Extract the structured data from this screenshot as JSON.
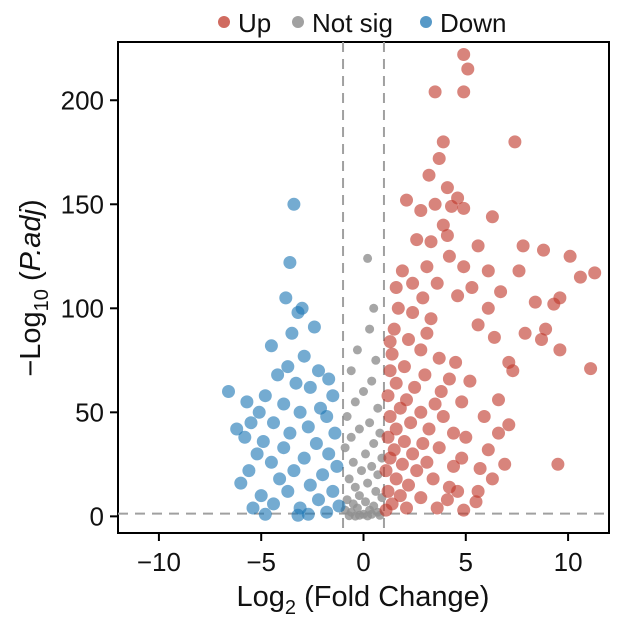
{
  "chart_data": {
    "type": "scatter",
    "title": "",
    "xlabel_main": "Log",
    "xlabel_sub": "2",
    "xlabel_rest": " (Fold Change)",
    "ylabel_main": "−Log",
    "ylabel_sub": "10",
    "ylabel_rest_a": " (",
    "ylabel_italic": "P.adj",
    "ylabel_rest_b": ")",
    "xlim": [
      -12,
      12
    ],
    "ylim": [
      -8,
      228
    ],
    "xticks": [
      -10,
      -5,
      0,
      5,
      10
    ],
    "xtick_labels": [
      "−10",
      "−5",
      "0",
      "5",
      "10"
    ],
    "yticks": [
      0,
      50,
      100,
      150,
      200
    ],
    "ytick_labels": [
      "0",
      "50",
      "100",
      "150",
      "200"
    ],
    "thresholds": {
      "log2fc": [
        -1,
        1
      ],
      "neg_log10_padj": 1.3
    },
    "legend_position": "top",
    "series": [
      {
        "name": "Up",
        "color": "#c0392b",
        "points": [
          [
            4.9,
            222
          ],
          [
            5.1,
            215
          ],
          [
            3.5,
            204
          ],
          [
            4.9,
            204
          ],
          [
            3.9,
            180
          ],
          [
            3.7,
            172
          ],
          [
            7.4,
            180
          ],
          [
            3.2,
            164
          ],
          [
            4.1,
            158
          ],
          [
            4.6,
            153
          ],
          [
            2.1,
            152
          ],
          [
            3.5,
            150
          ],
          [
            4.3,
            149
          ],
          [
            4.9,
            148
          ],
          [
            2.8,
            147
          ],
          [
            3.9,
            140
          ],
          [
            6.3,
            144
          ],
          [
            2.6,
            133
          ],
          [
            3.3,
            132
          ],
          [
            4.1,
            135
          ],
          [
            5.6,
            130
          ],
          [
            4.2,
            125
          ],
          [
            7.8,
            130
          ],
          [
            10.1,
            125
          ],
          [
            11.3,
            117
          ],
          [
            10.6,
            115
          ],
          [
            8.8,
            128
          ],
          [
            3.1,
            120
          ],
          [
            3.6,
            112
          ],
          [
            4.9,
            120
          ],
          [
            6.1,
            118
          ],
          [
            7.6,
            118
          ],
          [
            6.7,
            108
          ],
          [
            9.6,
            105
          ],
          [
            8.4,
            103
          ],
          [
            9.3,
            102
          ],
          [
            4.6,
            106
          ],
          [
            5.3,
            110
          ],
          [
            6.1,
            100
          ],
          [
            8.9,
            90
          ],
          [
            7.9,
            88
          ],
          [
            8.7,
            85
          ],
          [
            9.6,
            80
          ],
          [
            11.1,
            71
          ],
          [
            5.6,
            92
          ],
          [
            6.4,
            86
          ],
          [
            7.1,
            74
          ],
          [
            7.3,
            70
          ],
          [
            6.6,
            56
          ],
          [
            5.9,
            48
          ],
          [
            7.1,
            44
          ],
          [
            6.6,
            40
          ],
          [
            6.1,
            32
          ],
          [
            6.9,
            25
          ],
          [
            5.7,
            23
          ],
          [
            9.5,
            25
          ],
          [
            6.3,
            18
          ],
          [
            4.6,
            12
          ],
          [
            4.1,
            8
          ],
          [
            5.5,
            7
          ],
          [
            3.3,
            95
          ],
          [
            2.4,
            98
          ],
          [
            1.7,
            100
          ],
          [
            1.5,
            90
          ],
          [
            3.1,
            88
          ],
          [
            2.2,
            85
          ],
          [
            2.8,
            80
          ],
          [
            1.4,
            78
          ],
          [
            3.7,
            76
          ],
          [
            4.5,
            74
          ],
          [
            2.0,
            72
          ],
          [
            1.3,
            70
          ],
          [
            3.0,
            68
          ],
          [
            4.2,
            66
          ],
          [
            1.6,
            64
          ],
          [
            2.5,
            62
          ],
          [
            3.8,
            60
          ],
          [
            1.2,
            58
          ],
          [
            2.1,
            56
          ],
          [
            3.5,
            54
          ],
          [
            4.8,
            55
          ],
          [
            1.8,
            52
          ],
          [
            2.8,
            50
          ],
          [
            1.3,
            48
          ],
          [
            3.9,
            48
          ],
          [
            2.3,
            45
          ],
          [
            1.6,
            42
          ],
          [
            3.2,
            42
          ],
          [
            4.4,
            40
          ],
          [
            1.2,
            38
          ],
          [
            2.0,
            36
          ],
          [
            2.9,
            35
          ],
          [
            1.5,
            32
          ],
          [
            3.7,
            33
          ],
          [
            2.4,
            30
          ],
          [
            1.3,
            28
          ],
          [
            1.9,
            25
          ],
          [
            3.1,
            26
          ],
          [
            4.8,
            28
          ],
          [
            1.1,
            22
          ],
          [
            2.6,
            22
          ],
          [
            1.6,
            18
          ],
          [
            3.4,
            18
          ],
          [
            2.2,
            15
          ],
          [
            1.2,
            12
          ],
          [
            4.2,
            14
          ],
          [
            1.8,
            10
          ],
          [
            2.8,
            9
          ],
          [
            1.4,
            6
          ],
          [
            2.1,
            4
          ],
          [
            3.6,
            4
          ],
          [
            1.1,
            3
          ],
          [
            4.9,
            3
          ],
          [
            5.6,
            12
          ],
          [
            2.4,
            112
          ],
          [
            1.9,
            118
          ],
          [
            1.6,
            110
          ],
          [
            2.9,
            105
          ],
          [
            1.3,
            84
          ],
          [
            5.2,
            65
          ],
          [
            5.0,
            38
          ],
          [
            4.4,
            24
          ]
        ]
      },
      {
        "name": "Not sig",
        "color": "#909090",
        "points": [
          [
            0.2,
            124
          ],
          [
            0.5,
            100
          ],
          [
            0.3,
            90
          ],
          [
            -0.3,
            80
          ],
          [
            0.6,
            75
          ],
          [
            -0.6,
            70
          ],
          [
            0.4,
            65
          ],
          [
            0.0,
            60
          ],
          [
            -0.4,
            55
          ],
          [
            0.7,
            52
          ],
          [
            -0.8,
            48
          ],
          [
            0.3,
            45
          ],
          [
            -0.2,
            42
          ],
          [
            0.8,
            40
          ],
          [
            -0.6,
            38
          ],
          [
            0.5,
            35
          ],
          [
            -0.9,
            33
          ],
          [
            0.1,
            30
          ],
          [
            0.9,
            28
          ],
          [
            -0.5,
            26
          ],
          [
            0.4,
            24
          ],
          [
            -0.1,
            22
          ],
          [
            0.7,
            20
          ],
          [
            -0.7,
            18
          ],
          [
            0.2,
            16
          ],
          [
            -0.4,
            14
          ],
          [
            0.6,
            12
          ],
          [
            -0.2,
            10
          ],
          [
            0.9,
            9
          ],
          [
            -0.8,
            8
          ],
          [
            0.1,
            7
          ],
          [
            -0.5,
            6
          ],
          [
            0.5,
            5
          ],
          [
            -0.3,
            4
          ],
          [
            0.3,
            3
          ],
          [
            -0.9,
            3
          ],
          [
            0.7,
            2
          ],
          [
            -0.6,
            2
          ],
          [
            0.0,
            1
          ],
          [
            0.4,
            1
          ],
          [
            -0.2,
            0.5
          ],
          [
            0.8,
            0.5
          ],
          [
            -0.7,
            0.3
          ],
          [
            0.2,
            0.2
          ],
          [
            -0.4,
            0.1
          ]
        ]
      },
      {
        "name": "Down",
        "color": "#1f77b4",
        "points": [
          [
            -3.4,
            150
          ],
          [
            -3.6,
            122
          ],
          [
            -3.8,
            105
          ],
          [
            -3.2,
            98
          ],
          [
            -3.0,
            100
          ],
          [
            -3.5,
            88
          ],
          [
            -2.4,
            91
          ],
          [
            -4.5,
            82
          ],
          [
            -2.9,
            77
          ],
          [
            -3.7,
            72
          ],
          [
            -2.2,
            70
          ],
          [
            -4.2,
            68
          ],
          [
            -1.7,
            66
          ],
          [
            -3.3,
            64
          ],
          [
            -2.6,
            62
          ],
          [
            -6.6,
            60
          ],
          [
            -4.8,
            58
          ],
          [
            -1.5,
            58
          ],
          [
            -5.7,
            55
          ],
          [
            -3.9,
            54
          ],
          [
            -2.1,
            52
          ],
          [
            -5.1,
            50
          ],
          [
            -3.1,
            50
          ],
          [
            -1.8,
            48
          ],
          [
            -5.5,
            45
          ],
          [
            -4.4,
            45
          ],
          [
            -2.7,
            43
          ],
          [
            -6.2,
            42
          ],
          [
            -3.6,
            40
          ],
          [
            -1.4,
            40
          ],
          [
            -5.8,
            38
          ],
          [
            -4.9,
            36
          ],
          [
            -2.3,
            35
          ],
          [
            -3.9,
            33
          ],
          [
            -1.7,
            30
          ],
          [
            -5.2,
            30
          ],
          [
            -2.9,
            28
          ],
          [
            -4.5,
            26
          ],
          [
            -1.3,
            24
          ],
          [
            -3.4,
            22
          ],
          [
            -5.6,
            22
          ],
          [
            -2.0,
            20
          ],
          [
            -4.1,
            18
          ],
          [
            -6.0,
            16
          ],
          [
            -2.6,
            15
          ],
          [
            -1.5,
            12
          ],
          [
            -3.7,
            12
          ],
          [
            -5.0,
            10
          ],
          [
            -2.2,
            8
          ],
          [
            -4.4,
            6
          ],
          [
            -1.2,
            5
          ],
          [
            -3.1,
            4
          ],
          [
            -5.4,
            4
          ],
          [
            -1.8,
            2
          ],
          [
            -2.7,
            1
          ],
          [
            -4.8,
            1
          ],
          [
            -3.2,
            0.5
          ]
        ]
      }
    ]
  },
  "legend": {
    "items": [
      {
        "label": "Up",
        "color": "#c0392b"
      },
      {
        "label": "Not sig",
        "color": "#909090"
      },
      {
        "label": "Down",
        "color": "#1f77b4"
      }
    ]
  }
}
